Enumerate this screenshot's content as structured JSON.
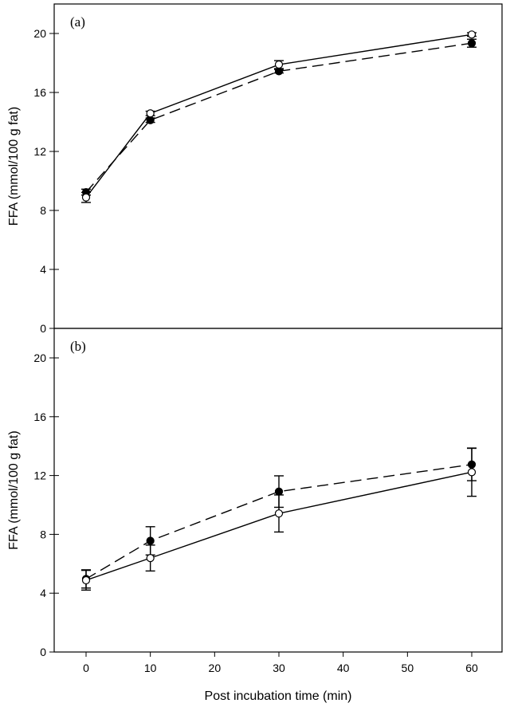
{
  "chart_data": [
    {
      "type": "line",
      "panel_label": "(a)",
      "xlabel": "",
      "ylabel": "FFA (mmol/100 g fat)",
      "ylim": [
        0,
        21
      ],
      "yticks": [
        0,
        4,
        8,
        12,
        16,
        20
      ],
      "xlim": [
        -5,
        64
      ],
      "x": [
        0,
        10,
        30,
        60
      ],
      "series": [
        {
          "name": "open",
          "marker": "open-circle",
          "line": "solid",
          "values": [
            8.88,
            14.58,
            17.89,
            19.93
          ],
          "errors": [
            0.34,
            0.15,
            0.27,
            0.12
          ]
        },
        {
          "name": "filled",
          "marker": "filled-circle",
          "line": "dashed",
          "values": [
            9.24,
            14.12,
            17.44,
            19.34
          ],
          "errors": [
            0.2,
            0.15,
            0.12,
            0.27
          ]
        }
      ]
    },
    {
      "type": "line",
      "panel_label": "(b)",
      "xlabel": "Post incubation time (min)",
      "ylabel": "FFA (mmol/100 g fat)",
      "ylim": [
        0,
        21
      ],
      "yticks": [
        0,
        4,
        8,
        12,
        16,
        20
      ],
      "xlim": [
        -5,
        64
      ],
      "xticks": [
        0,
        10,
        20,
        30,
        40,
        50,
        60
      ],
      "x": [
        0,
        10,
        30,
        60
      ],
      "series": [
        {
          "name": "open",
          "marker": "open-circle",
          "line": "solid",
          "values": [
            4.88,
            6.39,
            9.42,
            12.23
          ],
          "errors": [
            0.67,
            0.88,
            1.26,
            1.64
          ]
        },
        {
          "name": "filled",
          "marker": "filled-circle",
          "line": "dashed",
          "values": [
            4.97,
            7.56,
            10.91,
            12.75
          ],
          "errors": [
            0.62,
            0.96,
            1.07,
            1.1
          ]
        }
      ]
    }
  ]
}
